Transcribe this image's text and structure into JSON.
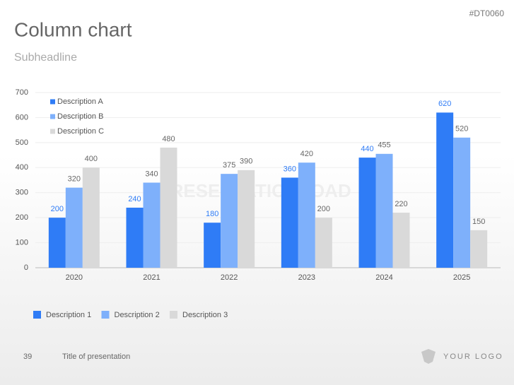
{
  "slide": {
    "code": "#DT0060",
    "page_number": "39",
    "footer_title": "Title of presentation",
    "logo_text": "YOUR LOGO",
    "watermark": "PRESENTATIONLOAD"
  },
  "chart_data": {
    "type": "bar",
    "title": "Column chart",
    "subtitle": "Subheadline",
    "categories": [
      "2020",
      "2021",
      "2022",
      "2023",
      "2024",
      "2025"
    ],
    "series": [
      {
        "name": "Description A",
        "color": "#2f7cf6",
        "label_color": "#2f7cf6",
        "values": [
          200,
          240,
          180,
          360,
          440,
          620
        ]
      },
      {
        "name": "Description B",
        "color": "#7eb0fb",
        "label_color": "#666666",
        "values": [
          320,
          340,
          375,
          420,
          455,
          520
        ]
      },
      {
        "name": "Description C",
        "color": "#d9d9d9",
        "label_color": "#666666",
        "values": [
          400,
          480,
          390,
          200,
          220,
          150
        ]
      }
    ],
    "legend_labels": [
      "Description 1",
      "Description 2",
      "Description 3"
    ],
    "ylim": [
      0,
      700
    ],
    "yticks": [
      0,
      100,
      200,
      300,
      400,
      500,
      600,
      700
    ],
    "grid": true
  }
}
